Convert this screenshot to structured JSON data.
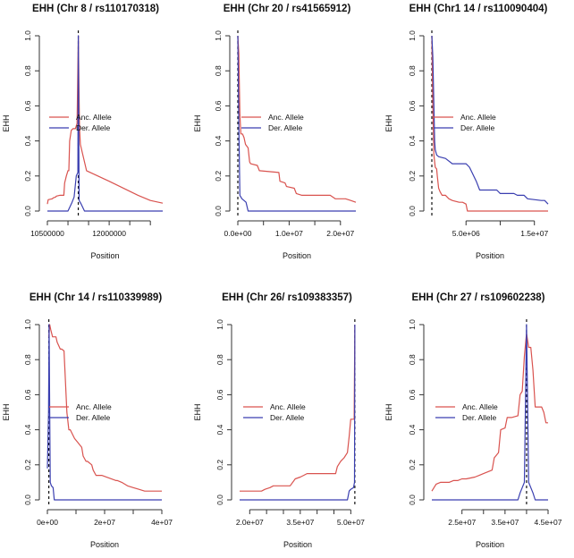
{
  "figure": {
    "colors": {
      "anc": "#d9534f",
      "der": "#3a3fb0",
      "axis": "#333333",
      "text": "#111111"
    }
  },
  "chart_data": [
    {
      "type": "line",
      "title": "EHH (Chr 8 / rs110170318)",
      "xlabel": "Position",
      "ylabel": "EHH",
      "xlim": [
        10500000,
        13300000
      ],
      "ylim": [
        0,
        1
      ],
      "xticks": [
        10500000,
        11000000,
        11500000,
        12000000,
        12500000,
        13000000
      ],
      "xtick_labels": [
        "10500000",
        "",
        "",
        "12000000",
        "",
        ""
      ],
      "yticks": [
        0.0,
        0.2,
        0.4,
        0.6,
        0.8,
        1.0
      ],
      "ytick_labels": [
        "0.0",
        "0.2",
        "0.4",
        "0.6",
        "0.8",
        "1.0"
      ],
      "core_position": 11250000,
      "legend": {
        "entries": [
          "Anc. Allele",
          "Der. Allele"
        ],
        "placement": "center-left"
      },
      "series": [
        {
          "name": "Anc. Allele",
          "x": [
            10500000,
            10520000,
            10620000,
            10640000,
            10700000,
            10720000,
            10800000,
            10830000,
            10900000,
            10920000,
            10960000,
            11000000,
            11020000,
            11040000,
            11080000,
            11120000,
            11180000,
            11220000,
            11250000,
            11280000,
            11300000,
            11450000,
            12000000,
            12700000,
            13000000,
            13300000
          ],
          "y": [
            0.04,
            0.065,
            0.07,
            0.075,
            0.08,
            0.085,
            0.09,
            0.09,
            0.09,
            0.16,
            0.2,
            0.23,
            0.23,
            0.4,
            0.46,
            0.47,
            0.47,
            0.5,
            1.0,
            0.48,
            0.38,
            0.23,
            0.17,
            0.09,
            0.06,
            0.045
          ]
        },
        {
          "name": "Der. Allele",
          "x": [
            10500000,
            11000000,
            11100000,
            11150000,
            11200000,
            11240000,
            11250000,
            11270000,
            11320000,
            11400000,
            13300000
          ],
          "y": [
            0,
            0,
            0.05,
            0.08,
            0.2,
            0.22,
            1.0,
            0.06,
            0.04,
            0,
            0
          ]
        }
      ]
    },
    {
      "type": "line",
      "title": "EHH (Chr 20 / rs41565912)",
      "xlabel": "Position",
      "ylabel": "EHH",
      "xlim": [
        0,
        23000000
      ],
      "ylim": [
        0,
        1
      ],
      "xticks": [
        0,
        5000000,
        10000000,
        15000000,
        20000000
      ],
      "xtick_labels": [
        "0.0e+00",
        "",
        "1.0e+07",
        "",
        "2.0e+07"
      ],
      "yticks": [
        0.0,
        0.2,
        0.4,
        0.6,
        0.8,
        1.0
      ],
      "ytick_labels": [
        "0.0",
        "0.2",
        "0.4",
        "0.6",
        "0.8",
        "1.0"
      ],
      "core_position": 0,
      "legend": {
        "entries": [
          "Anc. Allele",
          "Der. Allele"
        ],
        "placement": "center"
      },
      "series": [
        {
          "name": "Anc. Allele",
          "x": [
            0,
            200000,
            400000,
            600000,
            900000,
            1200000,
            1500000,
            2000000,
            2300000,
            2500000,
            3800000,
            4200000,
            8000000,
            8200000,
            9200000,
            9500000,
            11000000,
            11400000,
            12500000,
            13000000,
            18000000,
            19000000,
            21000000,
            22000000,
            23000000
          ],
          "y": [
            1.0,
            0.9,
            0.55,
            0.44,
            0.44,
            0.42,
            0.38,
            0.36,
            0.28,
            0.27,
            0.26,
            0.23,
            0.22,
            0.17,
            0.16,
            0.14,
            0.13,
            0.1,
            0.09,
            0.09,
            0.09,
            0.07,
            0.07,
            0.06,
            0.05
          ]
        },
        {
          "name": "Der. Allele",
          "x": [
            0,
            200000,
            400000,
            800000,
            1200000,
            1600000,
            2000000,
            23000000
          ],
          "y": [
            1.0,
            0.5,
            0.09,
            0.07,
            0.06,
            0.05,
            0.0,
            0.0
          ]
        }
      ]
    },
    {
      "type": "line",
      "title": "EHH (Chr1 14 / rs110090404)",
      "xlabel": "Position",
      "ylabel": "EHH",
      "xlim": [
        0,
        17000000
      ],
      "ylim": [
        0,
        1
      ],
      "xticks": [
        5000000,
        10000000,
        15000000
      ],
      "xtick_labels": [
        "5.0e+06",
        "",
        "1.5e+07"
      ],
      "yticks": [
        0.0,
        0.2,
        0.4,
        0.6,
        0.8,
        1.0
      ],
      "ytick_labels": [
        "0.0",
        "0.2",
        "0.4",
        "0.6",
        "0.8",
        "1.0"
      ],
      "core_position": 0,
      "legend": {
        "entries": [
          "Anc. Allele",
          "Der. Allele"
        ],
        "placement": "center"
      },
      "series": [
        {
          "name": "Anc. Allele",
          "x": [
            0,
            150000,
            300000,
            500000,
            700000,
            800000,
            1000000,
            1200000,
            1500000,
            2000000,
            2500000,
            3000000,
            4000000,
            4500000,
            5000000,
            5200000,
            17000000
          ],
          "y": [
            1.0,
            0.6,
            0.32,
            0.25,
            0.24,
            0.2,
            0.13,
            0.11,
            0.09,
            0.09,
            0.07,
            0.06,
            0.05,
            0.05,
            0.04,
            0.0,
            0.0
          ]
        },
        {
          "name": "Der. Allele",
          "x": [
            0,
            150000,
            300000,
            400000,
            500000,
            700000,
            1000000,
            2000000,
            3000000,
            5000000,
            5500000,
            6500000,
            7000000,
            7500000,
            9500000,
            10000000,
            12000000,
            12500000,
            13500000,
            14000000,
            16000000,
            16500000,
            17000000
          ],
          "y": [
            1.0,
            0.88,
            0.6,
            0.4,
            0.35,
            0.32,
            0.31,
            0.3,
            0.27,
            0.27,
            0.25,
            0.17,
            0.12,
            0.12,
            0.12,
            0.1,
            0.1,
            0.09,
            0.09,
            0.07,
            0.06,
            0.06,
            0.04
          ]
        }
      ]
    },
    {
      "type": "line",
      "title": "EHH (Chr 14 / rs110339989)",
      "xlabel": "Position",
      "ylabel": "EHH",
      "xlim": [
        0,
        40000000
      ],
      "ylim": [
        0,
        1
      ],
      "xticks": [
        0,
        10000000,
        20000000,
        30000000,
        40000000
      ],
      "xtick_labels": [
        "0e+00",
        "",
        "2e+07",
        "",
        "4e+07"
      ],
      "yticks": [
        0.0,
        0.2,
        0.4,
        0.6,
        0.8,
        1.0
      ],
      "ytick_labels": [
        "0.0",
        "0.2",
        "0.4",
        "0.6",
        "0.8",
        "1.0"
      ],
      "core_position": 500000,
      "legend": {
        "entries": [
          "Anc. Allele",
          "Der. Allele"
        ],
        "placement": "center"
      },
      "series": [
        {
          "name": "Anc. Allele",
          "x": [
            500000,
            800000,
            1200000,
            1800000,
            3000000,
            3400000,
            4500000,
            5000000,
            5800000,
            6200000,
            6800000,
            7500000,
            8000000,
            9500000,
            10500000,
            12000000,
            12500000,
            13500000,
            14000000,
            15500000,
            16000000,
            17000000,
            19000000,
            24000000,
            24500000,
            26000000,
            28000000,
            30000000,
            32000000,
            34000000,
            36000000,
            40000000
          ],
          "y": [
            0.93,
            1.0,
            0.97,
            0.93,
            0.93,
            0.9,
            0.86,
            0.86,
            0.85,
            0.72,
            0.5,
            0.4,
            0.4,
            0.35,
            0.33,
            0.3,
            0.25,
            0.22,
            0.22,
            0.2,
            0.17,
            0.14,
            0.14,
            0.11,
            0.11,
            0.1,
            0.08,
            0.07,
            0.06,
            0.05,
            0.05,
            0.05
          ]
        },
        {
          "name": "Der. Allele",
          "x": [
            0,
            400000,
            600000,
            800000,
            1000000,
            1400000,
            2000000,
            2400000,
            40000000
          ],
          "y": [
            0.18,
            0.5,
            1.0,
            0.5,
            0.1,
            0.08,
            0.07,
            0.0,
            0.0
          ]
        }
      ]
    },
    {
      "type": "line",
      "title": "EHH (Chr 26/ rs109383357)",
      "xlabel": "Position",
      "ylabel": "EHH",
      "xlim": [
        17000000,
        51500000
      ],
      "ylim": [
        0,
        1
      ],
      "xticks": [
        20000000,
        25000000,
        30000000,
        35000000,
        40000000,
        45000000,
        50000000
      ],
      "xtick_labels": [
        "2.0e+07",
        "",
        "",
        "3.5e+07",
        "",
        "",
        "5.0e+07"
      ],
      "yticks": [
        0.0,
        0.2,
        0.4,
        0.6,
        0.8,
        1.0
      ],
      "ytick_labels": [
        "0.0",
        "0.2",
        "0.4",
        "0.6",
        "0.8",
        "1.0"
      ],
      "core_position": 51200000,
      "legend": {
        "entries": [
          "Anc. Allele",
          "Der. Allele"
        ],
        "placement": "center-left"
      },
      "series": [
        {
          "name": "Anc. Allele",
          "x": [
            17000000,
            23500000,
            24500000,
            26000000,
            27000000,
            32000000,
            33500000,
            35000000,
            36000000,
            37000000,
            45500000,
            46000000,
            47000000,
            48000000,
            49000000,
            49500000,
            50000000,
            51000000,
            51200000
          ],
          "y": [
            0.05,
            0.05,
            0.06,
            0.07,
            0.08,
            0.08,
            0.12,
            0.13,
            0.14,
            0.15,
            0.15,
            0.19,
            0.22,
            0.24,
            0.27,
            0.36,
            0.46,
            0.46,
            1.0
          ]
        },
        {
          "name": "Der. Allele",
          "x": [
            17000000,
            49000000,
            49500000,
            50000000,
            50800000,
            51100000,
            51200000
          ],
          "y": [
            0,
            0,
            0.05,
            0.06,
            0.07,
            0.1,
            1.0
          ]
        }
      ]
    },
    {
      "type": "line",
      "title": "EHH (Chr 27 / rs109602238)",
      "xlabel": "Position",
      "ylabel": "EHH",
      "xlim": [
        18000000,
        45000000
      ],
      "ylim": [
        0,
        1
      ],
      "xticks": [
        25000000,
        30000000,
        35000000,
        40000000,
        45000000
      ],
      "xtick_labels": [
        "2.5e+07",
        "",
        "3.5e+07",
        "",
        "4.5e+07"
      ],
      "yticks": [
        0.0,
        0.2,
        0.4,
        0.6,
        0.8,
        1.0
      ],
      "ytick_labels": [
        "0.0",
        "0.2",
        "0.4",
        "0.6",
        "0.8",
        "1.0"
      ],
      "core_position": 40000000,
      "legend": {
        "entries": [
          "Anc. Allele",
          "Der. Allele"
        ],
        "placement": "center-left"
      },
      "series": [
        {
          "name": "Anc. Allele",
          "x": [
            18000000,
            19000000,
            20000000,
            22000000,
            23000000,
            24000000,
            25000000,
            26000000,
            28000000,
            29000000,
            30000000,
            32000000,
            32500000,
            33500000,
            34000000,
            35000000,
            35500000,
            36500000,
            38000000,
            38500000,
            39000000,
            39500000,
            40000000,
            40500000,
            41000000,
            41500000,
            42000000,
            43500000,
            44000000,
            44500000,
            45000000
          ],
          "y": [
            0.05,
            0.09,
            0.1,
            0.1,
            0.11,
            0.11,
            0.12,
            0.12,
            0.13,
            0.14,
            0.15,
            0.17,
            0.24,
            0.27,
            0.4,
            0.41,
            0.47,
            0.47,
            0.48,
            0.6,
            0.62,
            0.82,
            0.95,
            0.87,
            0.87,
            0.74,
            0.53,
            0.53,
            0.5,
            0.44,
            0.44
          ]
        },
        {
          "name": "Der. Allele",
          "x": [
            18000000,
            38000000,
            38500000,
            39000000,
            39500000,
            40000000,
            40500000,
            41000000,
            41500000,
            42000000,
            45000000
          ],
          "y": [
            0,
            0,
            0.04,
            0.07,
            0.1,
            1.0,
            0.1,
            0.07,
            0.04,
            0,
            0
          ]
        }
      ]
    }
  ]
}
